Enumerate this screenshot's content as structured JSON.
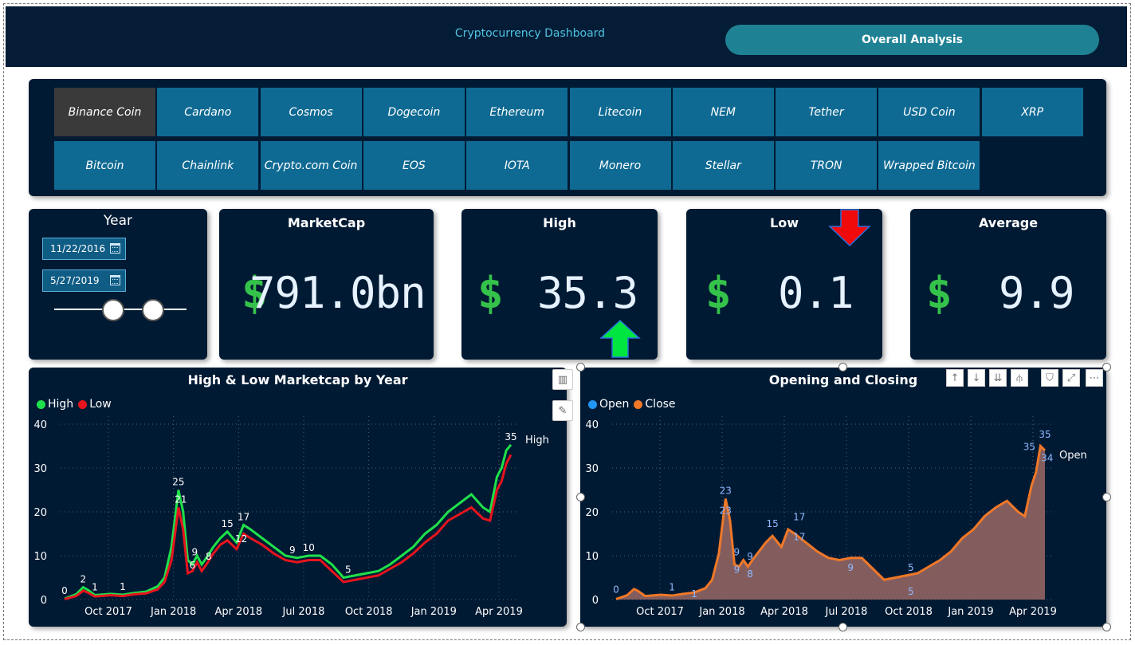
{
  "header": {
    "title": "Cryptocurrency Dashboard",
    "button_label": "Overall Analysis"
  },
  "coins": {
    "row1": [
      "Binance Coin",
      "Cardano",
      "Cosmos",
      "Dogecoin",
      "Ethereum",
      "Litecoin",
      "NEM",
      "Tether",
      "USD Coin",
      "XRP"
    ],
    "row2": [
      "Bitcoin",
      "Chainlink",
      "Crypto.com Coin",
      "EOS",
      "IOTA",
      "Monero",
      "Stellar",
      "TRON",
      "Wrapped Bitcoin"
    ],
    "selected": "Binance Coin"
  },
  "year_filter": {
    "title": "Year",
    "start_date": "11/22/2016",
    "end_date": "5/27/2019"
  },
  "cards": {
    "marketcap": {
      "title": "MarketCap",
      "symbol": "$",
      "value": "791.0bn"
    },
    "high": {
      "title": "High",
      "symbol": "$",
      "value": "35.3",
      "trend": "up"
    },
    "low": {
      "title": "Low",
      "symbol": "$",
      "value": "0.1",
      "trend": "down"
    },
    "average": {
      "title": "Average",
      "symbol": "$",
      "value": "9.9"
    }
  },
  "colors": {
    "high": "#1fe04a",
    "low": "#e8141e",
    "open": "#2196f3",
    "close": "#f07828",
    "area": "#8a6160",
    "card_bg": "#001a33",
    "tile": "#0f6a93"
  },
  "chart_data": [
    {
      "type": "line",
      "title": "High & Low Marketcap by Year",
      "legend": [
        "High",
        "Low"
      ],
      "x_ticks": [
        "Oct 2017",
        "Jan 2018",
        "Apr 2018",
        "Jul 2018",
        "Oct 2018",
        "Jan 2019",
        "Apr 2019"
      ],
      "y_ticks": [
        0,
        10,
        20,
        30,
        40
      ],
      "ylim": [
        0,
        40
      ],
      "x": [
        0,
        0.5,
        0.8,
        1.0,
        1.3,
        2.0,
        2.5,
        3.0,
        3.5,
        4.0,
        4.3,
        4.6,
        4.9,
        5.1,
        5.3,
        5.5,
        5.7,
        5.9,
        6.1,
        6.4,
        6.7,
        7.0,
        7.4,
        7.7,
        8.0,
        8.5,
        9.0,
        9.5,
        10.0,
        10.5,
        11.0,
        11.5,
        12.0,
        12.5,
        13.0,
        13.5,
        14.0,
        14.5,
        15.0,
        15.5,
        16.0,
        16.5,
        17.0,
        17.5,
        18.0,
        18.3,
        18.6,
        18.8,
        19.0,
        19.2
      ],
      "series": [
        {
          "name": "High",
          "values": [
            0.2,
            1.2,
            2.8,
            2.2,
            1.0,
            1.3,
            1.1,
            1.5,
            1.8,
            3.0,
            5.0,
            12.0,
            25.0,
            20.0,
            9.0,
            8.0,
            10.0,
            8.0,
            9.5,
            12.0,
            14.0,
            15.5,
            13.0,
            17.0,
            16.0,
            14.0,
            12.0,
            10.0,
            9.5,
            10.0,
            10.0,
            8.0,
            5.0,
            5.5,
            6.0,
            6.5,
            8.0,
            10.0,
            12.0,
            15.0,
            17.0,
            20.0,
            22.0,
            24.0,
            21.0,
            20.0,
            28.0,
            30.0,
            34.0,
            35.3
          ]
        },
        {
          "name": "Low",
          "values": [
            0.1,
            0.8,
            2.0,
            1.6,
            0.7,
            1.0,
            0.8,
            1.2,
            1.4,
            2.3,
            4.0,
            9.0,
            21.0,
            16.0,
            6.0,
            6.5,
            8.5,
            6.5,
            8.0,
            10.5,
            12.5,
            13.5,
            11.5,
            15.0,
            14.0,
            12.5,
            10.5,
            9.0,
            8.5,
            9.0,
            9.0,
            6.5,
            4.0,
            4.5,
            5.0,
            5.5,
            7.0,
            8.5,
            10.5,
            13.0,
            15.0,
            18.0,
            19.5,
            21.0,
            18.5,
            18.0,
            25.0,
            27.0,
            31.0,
            33.0
          ]
        }
      ],
      "data_labels": [
        {
          "label": "0",
          "x": 0.0,
          "y": 0.2
        },
        {
          "label": "2",
          "x": 0.8,
          "y": 2.8
        },
        {
          "label": "1",
          "x": 1.3,
          "y": 1.0
        },
        {
          "label": "1",
          "x": 2.5,
          "y": 1.1
        },
        {
          "label": "25",
          "x": 4.9,
          "y": 25.0
        },
        {
          "label": "21",
          "x": 5.0,
          "y": 21.0
        },
        {
          "label": "6",
          "x": 5.5,
          "y": 6.0
        },
        {
          "label": "9",
          "x": 5.6,
          "y": 9.0
        },
        {
          "label": "8",
          "x": 6.2,
          "y": 8.0
        },
        {
          "label": "15",
          "x": 7.0,
          "y": 15.5
        },
        {
          "label": "12",
          "x": 7.6,
          "y": 12.0
        },
        {
          "label": "17",
          "x": 7.7,
          "y": 17.0
        },
        {
          "label": "9",
          "x": 9.8,
          "y": 9.5
        },
        {
          "label": "10",
          "x": 10.5,
          "y": 10.0
        },
        {
          "label": "5",
          "x": 12.2,
          "y": 5.0
        },
        {
          "label": "35",
          "x": 19.2,
          "y": 35.3
        }
      ],
      "end_label": "High"
    },
    {
      "type": "area",
      "title": "Opening and Closing",
      "legend": [
        "Open",
        "Close"
      ],
      "x_ticks": [
        "Oct 2017",
        "Jan 2018",
        "Apr 2018",
        "Jul 2018",
        "Oct 2018",
        "Jan 2019",
        "Apr 2019"
      ],
      "y_ticks": [
        0,
        10,
        20,
        30,
        40
      ],
      "ylim": [
        0,
        40
      ],
      "x": [
        0,
        0.5,
        0.8,
        1.0,
        1.3,
        2.0,
        2.5,
        3.0,
        3.5,
        4.0,
        4.3,
        4.6,
        4.9,
        5.1,
        5.3,
        5.5,
        5.7,
        5.9,
        6.1,
        6.4,
        6.7,
        7.0,
        7.4,
        7.7,
        8.0,
        8.5,
        9.0,
        9.5,
        10.0,
        10.5,
        11.0,
        11.5,
        12.0,
        12.5,
        13.0,
        13.5,
        14.0,
        14.5,
        15.0,
        15.5,
        16.0,
        16.5,
        17.0,
        17.5,
        18.0,
        18.3,
        18.6,
        18.8,
        19.0,
        19.2
      ],
      "series": [
        {
          "name": "Open",
          "values": [
            0.1,
            1.0,
            2.4,
            1.9,
            0.8,
            1.1,
            0.9,
            1.3,
            1.6,
            2.6,
            4.5,
            10.5,
            23.0,
            18.0,
            8.0,
            7.5,
            9.0,
            7.5,
            9.0,
            11.0,
            13.0,
            14.5,
            12.0,
            16.0,
            15.0,
            13.0,
            11.0,
            9.5,
            9.0,
            9.5,
            9.5,
            7.0,
            4.5,
            5.0,
            5.5,
            6.0,
            7.5,
            9.0,
            11.0,
            14.0,
            16.0,
            19.0,
            21.0,
            22.5,
            20.0,
            19.0,
            26.0,
            29.0,
            35.0,
            34.0
          ]
        },
        {
          "name": "Close",
          "values": [
            0.1,
            1.0,
            2.4,
            1.9,
            0.8,
            1.1,
            0.9,
            1.3,
            1.6,
            2.6,
            4.5,
            10.5,
            23.0,
            18.0,
            8.0,
            7.5,
            9.0,
            7.5,
            9.0,
            11.0,
            13.0,
            14.5,
            12.0,
            16.0,
            15.0,
            13.0,
            11.0,
            9.5,
            9.0,
            9.5,
            9.5,
            7.0,
            4.5,
            5.0,
            5.5,
            6.0,
            7.5,
            9.0,
            11.0,
            14.0,
            16.0,
            19.0,
            21.0,
            22.5,
            20.0,
            19.0,
            26.0,
            29.0,
            35.0,
            34.0
          ]
        }
      ],
      "data_labels": [
        {
          "label": "0",
          "x": 0.0,
          "y": 0.5
        },
        {
          "label": "1",
          "x": 2.5,
          "y": 1.0
        },
        {
          "label": "1",
          "x": 3.5,
          "y": -0.5
        },
        {
          "label": "23",
          "x": 4.9,
          "y": 23.0
        },
        {
          "label": "23",
          "x": 4.9,
          "y": 18.5
        },
        {
          "label": "9",
          "x": 5.4,
          "y": 9.0
        },
        {
          "label": "9",
          "x": 5.4,
          "y": 5.0
        },
        {
          "label": "9",
          "x": 6.0,
          "y": 8.0
        },
        {
          "label": "8",
          "x": 6.0,
          "y": 4.0
        },
        {
          "label": "15",
          "x": 7.0,
          "y": 15.5
        },
        {
          "label": "17",
          "x": 8.2,
          "y": 17.0
        },
        {
          "label": "17",
          "x": 8.2,
          "y": 12.5
        },
        {
          "label": "9",
          "x": 10.5,
          "y": 5.5
        },
        {
          "label": "5",
          "x": 13.2,
          "y": 5.5
        },
        {
          "label": "5",
          "x": 13.2,
          "y": 0.0
        },
        {
          "label": "35",
          "x": 18.5,
          "y": 33.0
        },
        {
          "label": "35",
          "x": 19.2,
          "y": 35.8
        },
        {
          "label": "34",
          "x": 19.3,
          "y": 30.5
        }
      ],
      "end_label": "Open"
    }
  ]
}
